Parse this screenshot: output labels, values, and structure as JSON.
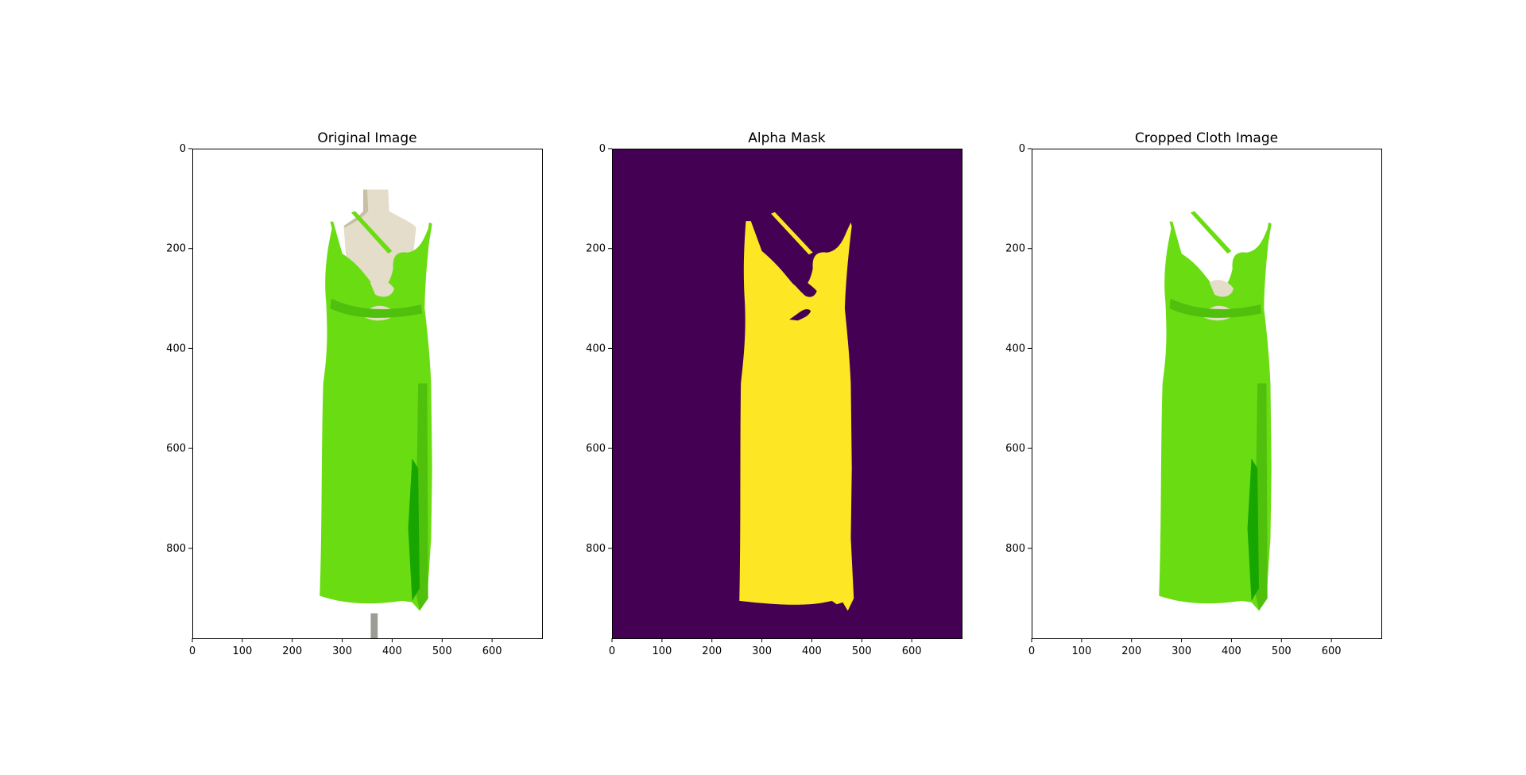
{
  "colors": {
    "background": "#ffffff",
    "dress_green": "#6adc12",
    "dress_green_shade": "#4fc00c",
    "dress_dark_green": "#17a600",
    "mannequin": "#e4ddc9",
    "mannequin_shade": "#c9bfa6",
    "stand_gray": "#9c9c94",
    "mask_background": "#440154",
    "mask_foreground": "#fde725"
  },
  "chart_data": [
    {
      "type": "image",
      "title": "Original Image",
      "image_content": "green-dress-on-mannequin",
      "xlim": [
        0,
        700
      ],
      "ylim": [
        980,
        0
      ],
      "xticks": [
        0,
        100,
        200,
        300,
        400,
        500,
        600
      ],
      "yticks": [
        0,
        200,
        400,
        600,
        800
      ],
      "xlabel": "",
      "ylabel": ""
    },
    {
      "type": "image",
      "title": "Alpha Mask",
      "image_content": "binary-dress-mask",
      "xlim": [
        0,
        700
      ],
      "ylim": [
        980,
        0
      ],
      "xticks": [
        0,
        100,
        200,
        300,
        400,
        500,
        600
      ],
      "yticks": [
        0,
        200,
        400,
        600,
        800
      ],
      "xlabel": "",
      "ylabel": ""
    },
    {
      "type": "image",
      "title": "Cropped Cloth Image",
      "image_content": "green-dress-cutout",
      "xlim": [
        0,
        700
      ],
      "ylim": [
        980,
        0
      ],
      "xticks": [
        0,
        100,
        200,
        300,
        400,
        500,
        600
      ],
      "yticks": [
        0,
        200,
        400,
        600,
        800
      ],
      "xlabel": "",
      "ylabel": ""
    }
  ]
}
